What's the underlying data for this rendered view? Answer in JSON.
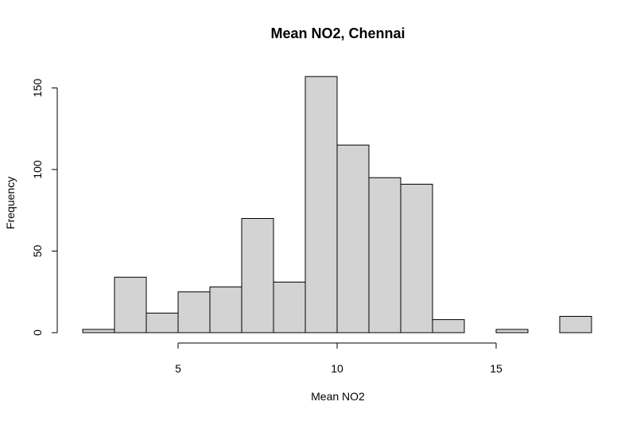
{
  "chart_data": {
    "type": "bar",
    "title": "Mean NO2, Chennai",
    "xlabel": "Mean NO2",
    "ylabel": "Frequency",
    "bin_edges": [
      2,
      3,
      4,
      5,
      6,
      7,
      8,
      9,
      10,
      11,
      12,
      13,
      14,
      15,
      16,
      17,
      18
    ],
    "values": [
      2,
      34,
      12,
      25,
      28,
      70,
      31,
      157,
      115,
      95,
      91,
      8,
      0,
      2,
      0,
      10
    ],
    "xlim": [
      2,
      18
    ],
    "ylim": [
      0,
      160
    ],
    "x_ticks": [
      5,
      10,
      15
    ],
    "y_ticks": [
      0,
      50,
      100,
      150
    ],
    "grid": false,
    "bar_color": "#d3d3d3"
  }
}
